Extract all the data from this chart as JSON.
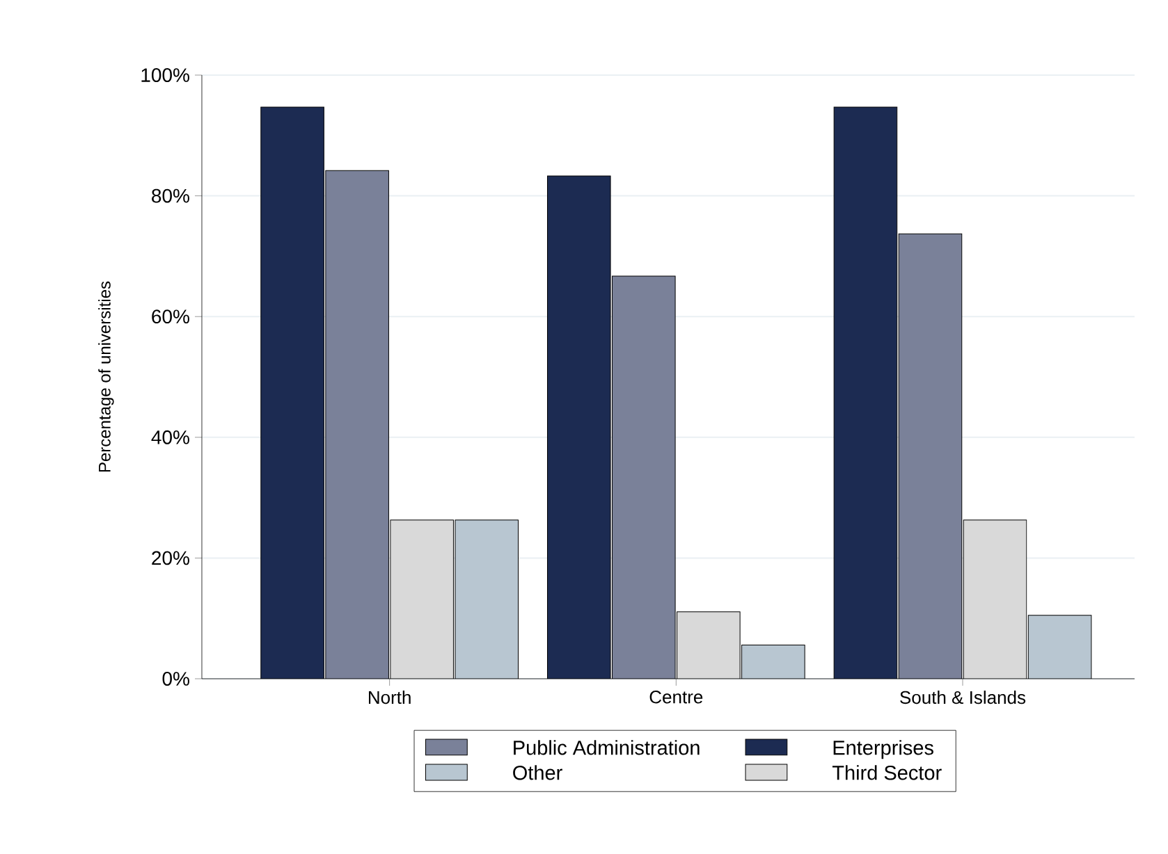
{
  "chart_data": {
    "type": "bar",
    "ylabel": "Percentage of universities",
    "categories": [
      "North",
      "Centre",
      "South & Islands"
    ],
    "series": [
      {
        "name": "Enterprises",
        "color": "#1c2b52",
        "values": [
          94.7,
          83.3,
          94.7
        ]
      },
      {
        "name": "Public Administration",
        "color": "#7a8199",
        "values": [
          84.2,
          66.7,
          73.7
        ]
      },
      {
        "name": "Third Sector",
        "color": "#d9d9d9",
        "values": [
          26.3,
          11.1,
          26.3
        ]
      },
      {
        "name": "Other",
        "color": "#b8c6d1",
        "values": [
          26.3,
          5.6,
          10.5
        ]
      }
    ],
    "ylim": [
      0,
      100
    ],
    "yticks": [
      {
        "value": 0,
        "label": "0%"
      },
      {
        "value": 20,
        "label": "20%"
      },
      {
        "value": 40,
        "label": "40%"
      },
      {
        "value": 60,
        "label": "60%"
      },
      {
        "value": 80,
        "label": "80%"
      },
      {
        "value": 100,
        "label": "100%"
      }
    ],
    "grid": "y",
    "legend": "bottom"
  }
}
